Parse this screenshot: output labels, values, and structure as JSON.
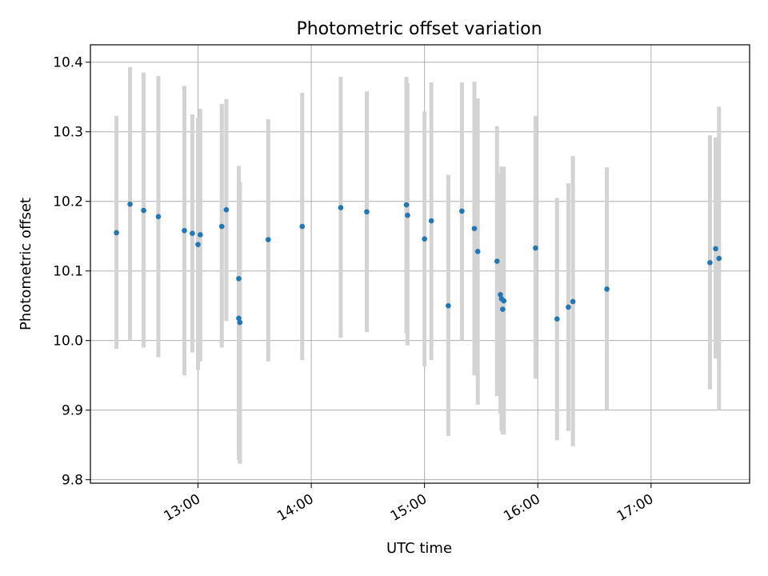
{
  "chart_data": {
    "type": "scatter",
    "title": "Photometric offset variation",
    "xlabel": "UTC time",
    "ylabel": "Photometric offset",
    "x_unit": "hours (UTC)",
    "xlim": [
      12.05,
      17.87
    ],
    "ylim": [
      9.795,
      10.425
    ],
    "x_ticks": [
      {
        "value": 13,
        "label": "13:00"
      },
      {
        "value": 14,
        "label": "14:00"
      },
      {
        "value": 15,
        "label": "15:00"
      },
      {
        "value": 16,
        "label": "16:00"
      },
      {
        "value": 17,
        "label": "17:00"
      }
    ],
    "y_ticks": [
      {
        "value": 9.8,
        "label": "9.8"
      },
      {
        "value": 9.9,
        "label": "9.9"
      },
      {
        "value": 10.0,
        "label": "10.0"
      },
      {
        "value": 10.1,
        "label": "10.1"
      },
      {
        "value": 10.2,
        "label": "10.2"
      },
      {
        "value": 10.3,
        "label": "10.3"
      },
      {
        "value": 10.4,
        "label": "10.4"
      }
    ],
    "grid": true,
    "marker_color": "#1f77b4",
    "errorbar_color": "#d3d3d3",
    "points": [
      {
        "x": 12.28,
        "y": 10.155,
        "low": 9.988,
        "high": 10.323
      },
      {
        "x": 12.4,
        "y": 10.196,
        "low": 10.001,
        "high": 10.393
      },
      {
        "x": 12.52,
        "y": 10.187,
        "low": 9.99,
        "high": 10.385
      },
      {
        "x": 12.65,
        "y": 10.178,
        "low": 9.976,
        "high": 10.38
      },
      {
        "x": 12.88,
        "y": 10.158,
        "low": 9.95,
        "high": 10.366
      },
      {
        "x": 12.95,
        "y": 10.154,
        "low": 9.983,
        "high": 10.325
      },
      {
        "x": 13.0,
        "y": 10.138,
        "low": 9.958,
        "high": 10.32
      },
      {
        "x": 13.02,
        "y": 10.152,
        "low": 9.97,
        "high": 10.333
      },
      {
        "x": 13.21,
        "y": 10.164,
        "low": 9.99,
        "high": 10.34
      },
      {
        "x": 13.25,
        "y": 10.188,
        "low": 10.028,
        "high": 10.347
      },
      {
        "x": 13.36,
        "y": 10.089,
        "low": 9.925,
        "high": 10.251
      },
      {
        "x": 13.36,
        "y": 10.032,
        "low": 9.828,
        "high": 10.24
      },
      {
        "x": 13.37,
        "y": 10.026,
        "low": 9.823,
        "high": 10.228
      },
      {
        "x": 13.62,
        "y": 10.145,
        "low": 9.97,
        "high": 10.318
      },
      {
        "x": 13.92,
        "y": 10.164,
        "low": 9.972,
        "high": 10.356
      },
      {
        "x": 14.26,
        "y": 10.191,
        "low": 10.004,
        "high": 10.379
      },
      {
        "x": 14.49,
        "y": 10.185,
        "low": 10.012,
        "high": 10.358
      },
      {
        "x": 14.84,
        "y": 10.195,
        "low": 10.01,
        "high": 10.379
      },
      {
        "x": 14.85,
        "y": 10.18,
        "low": 9.993,
        "high": 10.37
      },
      {
        "x": 15.0,
        "y": 10.146,
        "low": 9.963,
        "high": 10.329
      },
      {
        "x": 15.06,
        "y": 10.172,
        "low": 9.972,
        "high": 10.371
      },
      {
        "x": 15.21,
        "y": 10.05,
        "low": 9.863,
        "high": 10.238
      },
      {
        "x": 15.33,
        "y": 10.186,
        "low": 10.0,
        "high": 10.371
      },
      {
        "x": 15.44,
        "y": 10.161,
        "low": 9.95,
        "high": 10.372
      },
      {
        "x": 15.47,
        "y": 10.128,
        "low": 9.908,
        "high": 10.348
      },
      {
        "x": 15.64,
        "y": 10.114,
        "low": 9.92,
        "high": 10.308
      },
      {
        "x": 15.67,
        "y": 10.066,
        "low": 9.895,
        "high": 10.24
      },
      {
        "x": 15.68,
        "y": 10.06,
        "low": 9.87,
        "high": 10.25
      },
      {
        "x": 15.69,
        "y": 10.045,
        "low": 9.865,
        "high": 10.225
      },
      {
        "x": 15.7,
        "y": 10.057,
        "low": 9.865,
        "high": 10.25
      },
      {
        "x": 15.98,
        "y": 10.133,
        "low": 9.945,
        "high": 10.323
      },
      {
        "x": 16.17,
        "y": 10.031,
        "low": 9.857,
        "high": 10.205
      },
      {
        "x": 16.27,
        "y": 10.048,
        "low": 9.87,
        "high": 10.226
      },
      {
        "x": 16.31,
        "y": 10.056,
        "low": 9.848,
        "high": 10.265
      },
      {
        "x": 16.61,
        "y": 10.074,
        "low": 9.9,
        "high": 10.249
      },
      {
        "x": 17.52,
        "y": 10.112,
        "low": 9.93,
        "high": 10.295
      },
      {
        "x": 17.57,
        "y": 10.132,
        "low": 9.974,
        "high": 10.292
      },
      {
        "x": 17.6,
        "y": 10.118,
        "low": 9.9,
        "high": 10.336
      }
    ]
  }
}
